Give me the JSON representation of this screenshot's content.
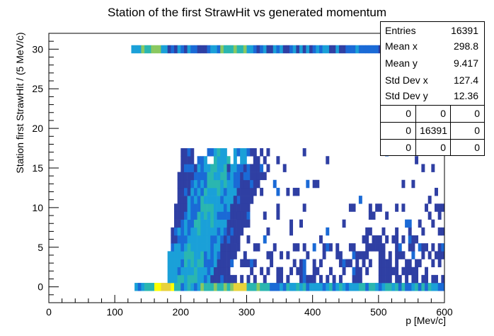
{
  "chart_data": {
    "type": "heatmap",
    "title": "Station of the first StrawHit vs generated momentum",
    "xlabel": "p [Mev/c]",
    "ylabel": "Station first StrawHit / (5 MeV/c)",
    "xlim": [
      0,
      600
    ],
    "ylim": [
      -2,
      32
    ],
    "x_ticks": [
      0,
      100,
      200,
      300,
      400,
      500,
      600
    ],
    "y_ticks": [
      0,
      5,
      10,
      15,
      20,
      25,
      30
    ],
    "bin_width_x": 5,
    "bin_height_y": 1,
    "colormap": [
      "#2f3fa3",
      "#1a6ad6",
      "#1aa0d8",
      "#2ab6b0",
      "#8ac860",
      "#e8d23a",
      "#ffff00"
    ],
    "stats": {
      "entries_label": "Entries",
      "entries": "16391",
      "meanx_label": "Mean x",
      "meanx": "298.8",
      "meany_label": "Mean y",
      "meany": "9.417",
      "stdx_label": "Std Dev x",
      "stdx": "127.4",
      "stdy_label": "Std Dev y",
      "stdy": "12.36",
      "grid": [
        [
          "0",
          "0",
          "0"
        ],
        [
          "0",
          "16391",
          "0"
        ],
        [
          "0",
          "0",
          "0"
        ]
      ]
    }
  }
}
